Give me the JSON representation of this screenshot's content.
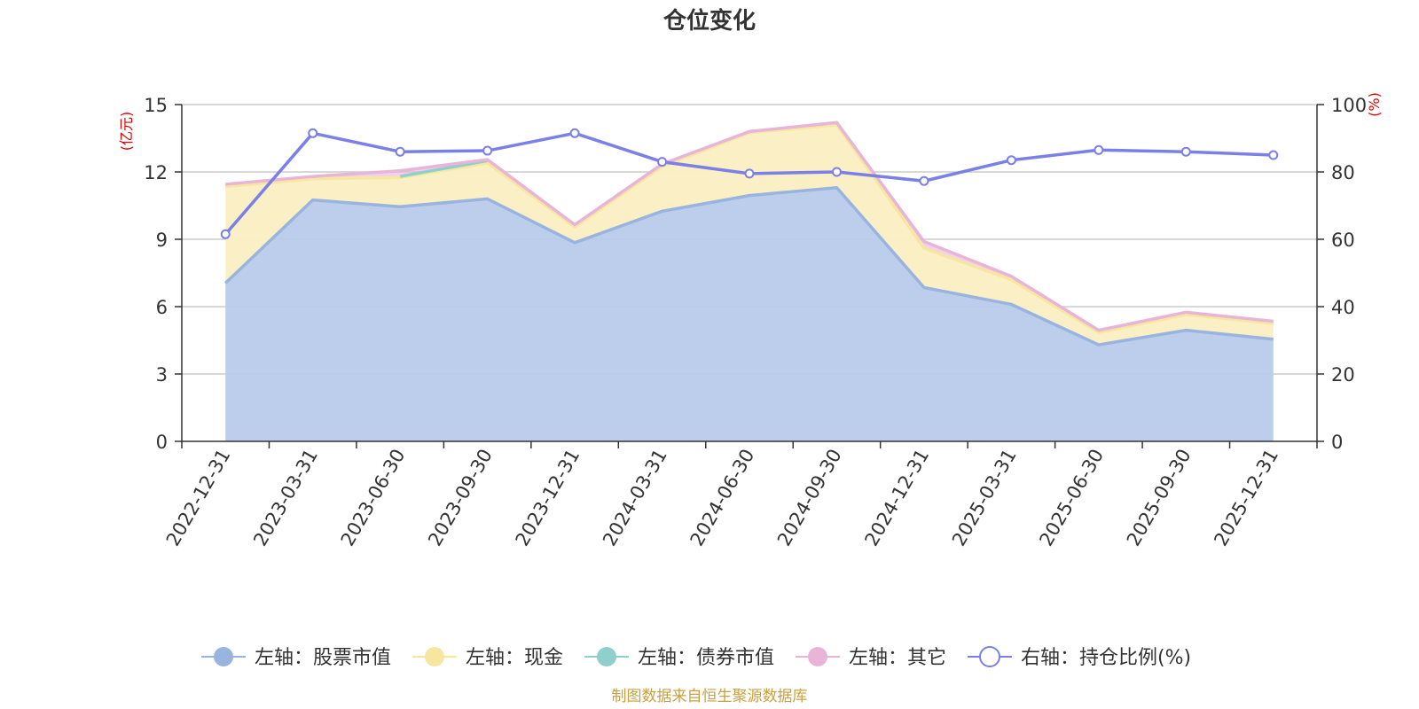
{
  "colors": {
    "stock": "#9ab4e0",
    "stock_fill": "#b8cbea",
    "cash": "#f7e6a0",
    "cash_fill": "#fbefc2",
    "bond": "#8fd0cc",
    "other": "#e8b4d8",
    "ratio": "#7b7fe8",
    "grid": "#cccccc",
    "axis": "#333333",
    "unit": "#e00000",
    "source": "#c8a040"
  },
  "chart_data": {
    "type": "area",
    "title": "仓位变化",
    "left_unit": "(亿元)",
    "right_unit": "(%)",
    "categories": [
      "2022-12-31",
      "2023-03-31",
      "2023-06-30",
      "2023-09-30",
      "2023-12-31",
      "2024-03-31",
      "2024-06-30",
      "2024-09-30",
      "2024-12-31",
      "2025-03-31",
      "2025-06-30",
      "2025-09-30",
      "2025-12-31"
    ],
    "left_axis": {
      "min": 0,
      "max": 15,
      "ticks": [
        "0",
        "3",
        "6",
        "9",
        "12",
        "15"
      ]
    },
    "right_axis": {
      "min": 0,
      "max": 100,
      "ticks": [
        "0",
        "20",
        "40",
        "60",
        "80",
        "100"
      ]
    },
    "grid": true,
    "legend_position": "bottom",
    "series": [
      {
        "key": "stock",
        "name": "左轴：股票市值",
        "axis": "left",
        "stack": true,
        "values": [
          7.05,
          10.75,
          10.45,
          10.8,
          8.85,
          10.25,
          10.95,
          11.3,
          6.85,
          6.1,
          4.3,
          4.95,
          4.55
        ]
      },
      {
        "key": "cash",
        "name": "左轴：现金",
        "axis": "left",
        "stack": true,
        "values": [
          4.3,
          0.95,
          1.3,
          1.6,
          0.7,
          2.0,
          2.8,
          2.8,
          1.75,
          1.1,
          0.55,
          0.7,
          0.7
        ]
      },
      {
        "key": "bond",
        "name": "左轴：债券市值",
        "axis": "left",
        "stack": true,
        "values": [
          0,
          0,
          0.05,
          0.1,
          0,
          0,
          0,
          0,
          0,
          0,
          0,
          0,
          0
        ]
      },
      {
        "key": "other",
        "name": "左轴：其它",
        "axis": "left",
        "stack": true,
        "values": [
          0.1,
          0.1,
          0.25,
          0.05,
          0.1,
          0.1,
          0.05,
          0.1,
          0.3,
          0.15,
          0.1,
          0.1,
          0.1
        ]
      },
      {
        "key": "ratio",
        "name": "右轴：持仓比例(%)",
        "axis": "right",
        "stack": false,
        "values": [
          61.5,
          91.5,
          86,
          86.3,
          91.5,
          83,
          79.5,
          80,
          77.3,
          83.5,
          86.5,
          86,
          85
        ]
      }
    ]
  },
  "footer": {
    "source": "制图数据来自恒生聚源数据库"
  }
}
